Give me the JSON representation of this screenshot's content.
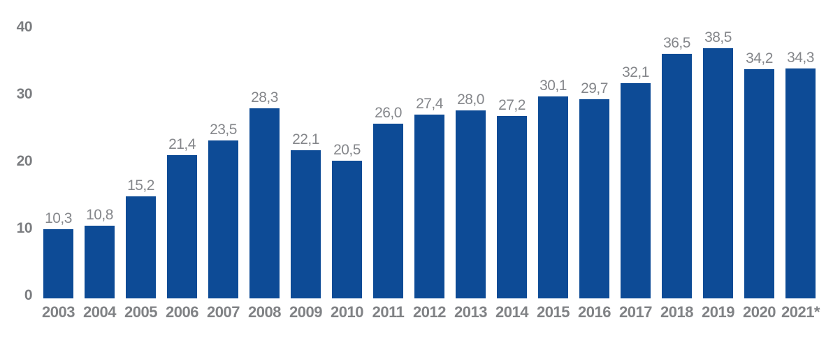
{
  "chart_data": {
    "type": "bar",
    "title": "",
    "xlabel": "",
    "ylabel": "",
    "categories": [
      "2003",
      "2004",
      "2005",
      "2006",
      "2007",
      "2008",
      "2009",
      "2010",
      "2011",
      "2012",
      "2013",
      "2014",
      "2015",
      "2016",
      "2017",
      "2018",
      "2019",
      "2020",
      "2021*"
    ],
    "values": [
      10.3,
      10.8,
      15.2,
      21.4,
      23.5,
      28.3,
      22.1,
      20.5,
      26.0,
      27.4,
      28.0,
      27.2,
      30.1,
      29.7,
      32.1,
      36.5,
      38.5,
      34.2,
      34.3
    ],
    "value_labels": [
      "10,3",
      "10,8",
      "15,2",
      "21,4",
      "23,5",
      "28,3",
      "22,1",
      "20,5",
      "26,0",
      "27,4",
      "28,0",
      "27,2",
      "30,1",
      "29,7",
      "32,1",
      "36,5",
      "38,5",
      "34,2",
      "34,3"
    ],
    "yticks": [
      0,
      10,
      20,
      30,
      40
    ],
    "ytick_labels": [
      "0",
      "10",
      "20",
      "30",
      "40"
    ],
    "ylim": [
      0,
      40
    ],
    "grid": false,
    "legend": false,
    "decimal_separator": ",",
    "bar_color": "#0d4b96",
    "value_label_color": "#85878b",
    "axis_tick_color": "#7b7d80",
    "category_label_color": "#808285",
    "background_color": "#ffffff"
  }
}
